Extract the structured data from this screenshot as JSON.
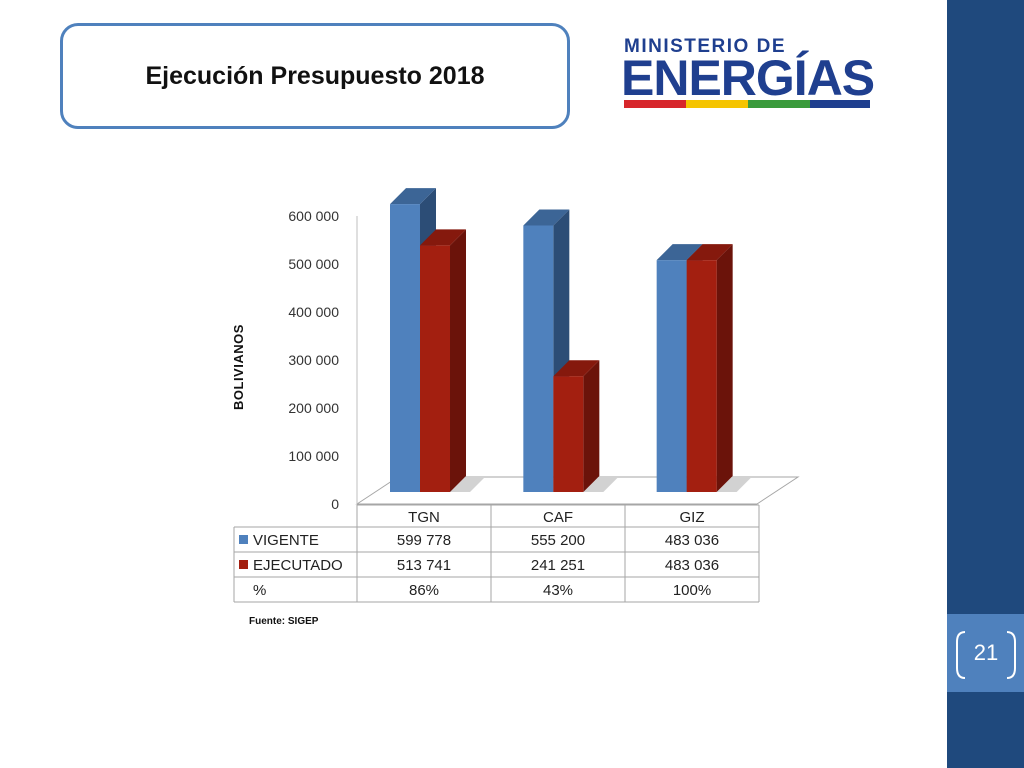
{
  "slide": {
    "title": "Ejecución Presupuesto 2018",
    "page_number": "21",
    "source": "Fuente: SIGEP",
    "band_color": "#1f497d",
    "accent_color": "#4f81bd"
  },
  "logo": {
    "top_text": "MINISTERIO DE",
    "main_text": "ENERGÍAS",
    "bar_colors": [
      "#d7262b",
      "#f5c400",
      "#3a9a3c",
      "#1f3f8f"
    ]
  },
  "chart_data": {
    "type": "bar",
    "categories": [
      "TGN",
      "CAF",
      "GIZ"
    ],
    "series": [
      {
        "name": "VIGENTE",
        "values": [
          599778,
          555200,
          483036
        ],
        "color": "#4f81bd",
        "side_color": "#2c4d76",
        "top_color": "#3c6596"
      },
      {
        "name": "EJECUTADO",
        "values": [
          513741,
          241251,
          483036
        ],
        "color": "#a31f10",
        "side_color": "#6b130a",
        "top_color": "#85190d"
      }
    ],
    "ylabel": "BOLIVIANOS",
    "ylim": [
      0,
      600000
    ],
    "yticks": [
      0,
      100000,
      200000,
      300000,
      400000,
      500000,
      600000
    ],
    "ytick_labels": [
      "0",
      "100 000",
      "200 000",
      "300 000",
      "400 000",
      "500 000",
      "600 000"
    ],
    "legend_placement": "data-table-below",
    "data_table": {
      "rows": [
        {
          "label": "VIGENTE",
          "values": [
            "599 778",
            "555 200",
            "483 036"
          ]
        },
        {
          "label": "EJECUTADO",
          "values": [
            "513 741",
            "241 251",
            "483 036"
          ]
        },
        {
          "label": "%",
          "values": [
            "86%",
            "43%",
            "100%"
          ]
        }
      ]
    }
  }
}
